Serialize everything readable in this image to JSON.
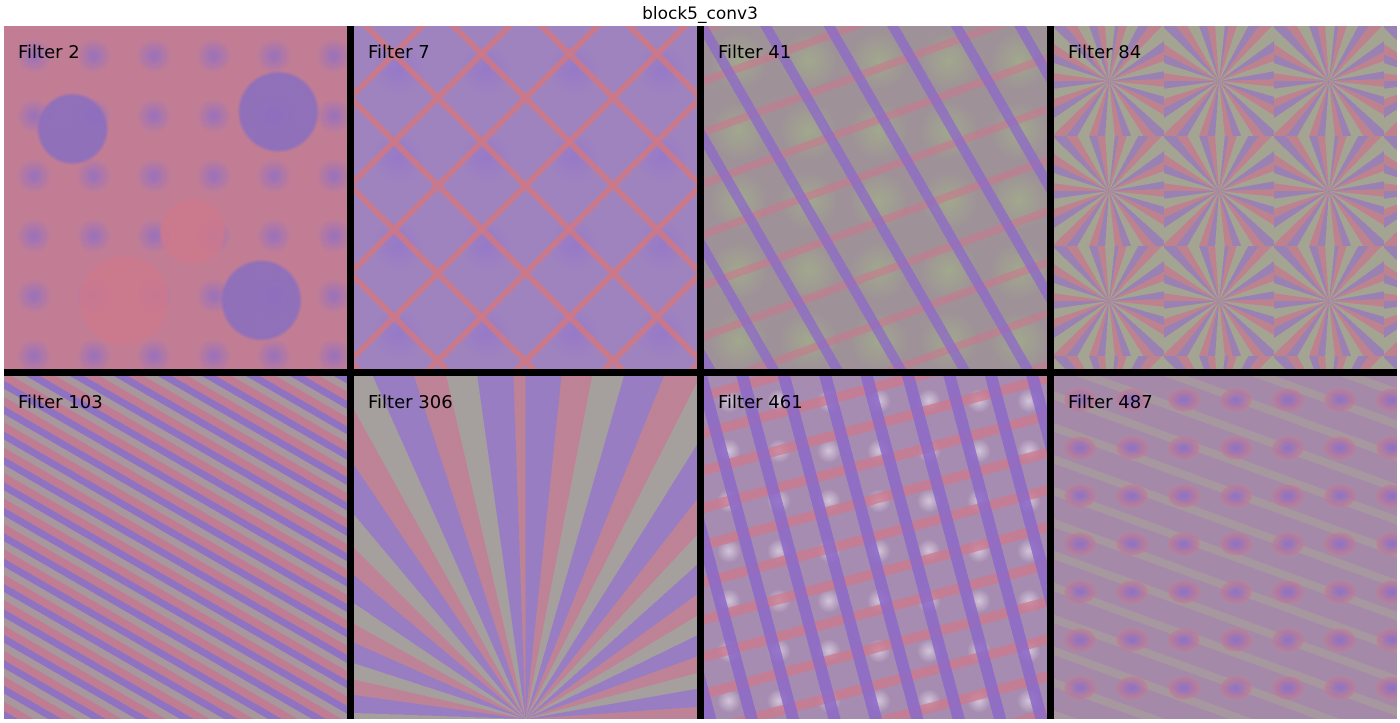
{
  "figure": {
    "title": "block5_conv3"
  },
  "tiles": [
    {
      "label": "Filter 2"
    },
    {
      "label": "Filter 7"
    },
    {
      "label": "Filter 41"
    },
    {
      "label": "Filter 84"
    },
    {
      "label": "Filter 103"
    },
    {
      "label": "Filter 306"
    },
    {
      "label": "Filter 461"
    },
    {
      "label": "Filter 487"
    }
  ],
  "colors": {
    "background": "#ffffff",
    "separator": "#000000",
    "texture_purple": "#8c6ec8",
    "texture_pink": "#cd788c",
    "texture_olive": "#a6a090"
  }
}
